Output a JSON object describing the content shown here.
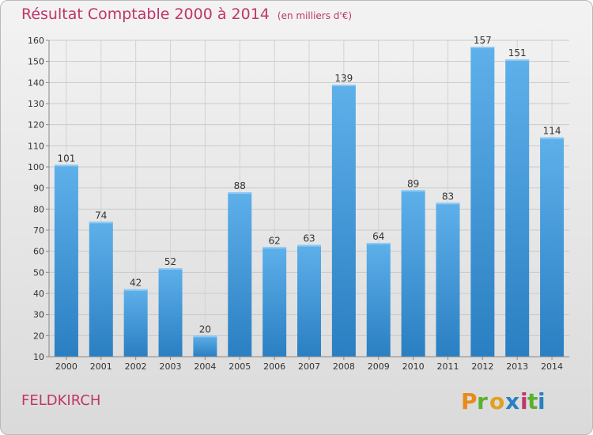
{
  "header": {
    "title": "Résultat Comptable 2000 à 2014",
    "subtitle": "(en milliers d'€)"
  },
  "footer": {
    "commune": "FELDKIRCH",
    "brand": "Proxiti"
  },
  "colors": {
    "title": "#c0356a",
    "bar_light": "#5eb0ea",
    "bar_dark": "#2a7fc2"
  },
  "chart_data": {
    "type": "bar",
    "title": "Résultat Comptable 2000 à 2014",
    "subtitle": "(en milliers d'€)",
    "categories": [
      "2000",
      "2001",
      "2002",
      "2003",
      "2004",
      "2005",
      "2006",
      "2007",
      "2008",
      "2009",
      "2010",
      "2011",
      "2012",
      "2013",
      "2014"
    ],
    "values": [
      101,
      74,
      42,
      52,
      20,
      88,
      62,
      63,
      139,
      64,
      89,
      83,
      157,
      151,
      114
    ],
    "ylim": [
      10,
      160
    ],
    "yticks": [
      10,
      20,
      30,
      40,
      50,
      60,
      70,
      80,
      90,
      100,
      110,
      120,
      130,
      140,
      150,
      160
    ],
    "grid": true,
    "data_labels": true
  }
}
